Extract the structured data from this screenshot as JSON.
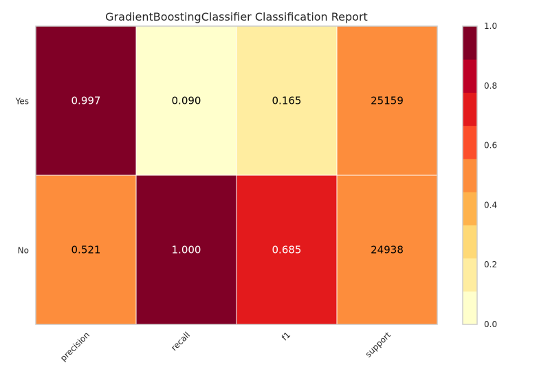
{
  "chart_data": {
    "type": "heatmap",
    "title": "GradientBoostingClassifier Classification Report",
    "rows": [
      "Yes",
      "No"
    ],
    "columns": [
      "precision",
      "recall",
      "f1",
      "support"
    ],
    "values": [
      [
        0.997,
        0.09,
        0.165,
        25159
      ],
      [
        0.521,
        1.0,
        0.685,
        24938
      ]
    ],
    "cell_labels": [
      [
        "0.997",
        "0.090",
        "0.165",
        "25159"
      ],
      [
        "0.521",
        "1.000",
        "0.685",
        "24938"
      ]
    ],
    "cell_colors": [
      [
        "#800026",
        "#ffffcc",
        "#ffeda0",
        "#fd8d3c"
      ],
      [
        "#fd8d3c",
        "#800026",
        "#e31a1c",
        "#fd8d3c"
      ]
    ],
    "colorbar": {
      "range": [
        0.0,
        1.0
      ],
      "ticks": [
        "0.0",
        "0.2",
        "0.4",
        "0.6",
        "0.8",
        "1.0"
      ],
      "bands": [
        "#ffffcc",
        "#ffeda0",
        "#fed976",
        "#feb24c",
        "#fd8d3c",
        "#fc4e2a",
        "#e31a1c",
        "#bd0026",
        "#800026"
      ]
    },
    "grid": false,
    "colormap": "YlOrRd"
  }
}
